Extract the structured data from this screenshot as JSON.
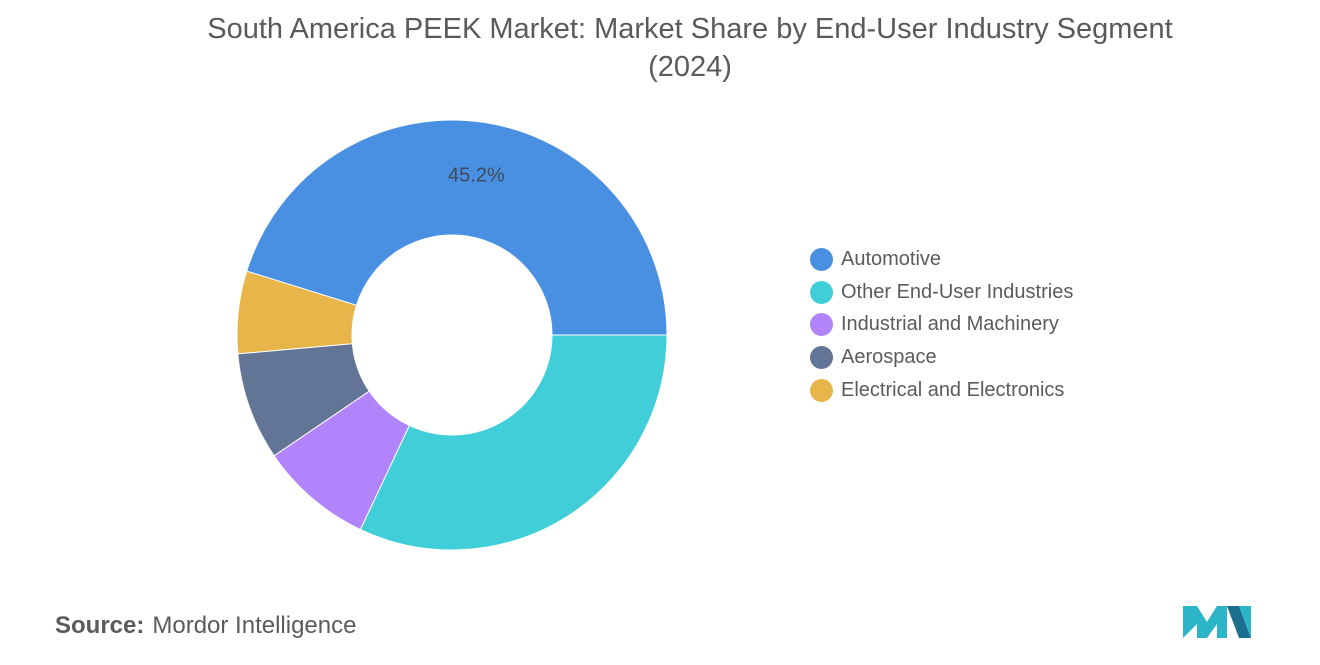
{
  "title_lines": [
    "South America PEEK Market: Market Share by End-User Industry Segment",
    "(2024)"
  ],
  "chart_data": {
    "type": "pie",
    "variant": "donut",
    "title": "South America PEEK Market: Market Share by End-User Industry Segment (2024)",
    "unit": "%",
    "legend_position": "right",
    "slices": [
      {
        "name": "Automotive",
        "value": 45.2,
        "color": "#4a90e2",
        "label": "45.2%"
      },
      {
        "name": "Electrical and Electronics",
        "value": 6.2,
        "color": "#e8b54a",
        "label": ""
      },
      {
        "name": "Aerospace",
        "value": 8.1,
        "color": "#637596",
        "label": ""
      },
      {
        "name": "Industrial and Machinery",
        "value": 8.5,
        "color": "#b184fb",
        "label": ""
      },
      {
        "name": "Other End-User Industries",
        "value": 32.0,
        "color": "#40cfd8",
        "label": ""
      }
    ],
    "legend": [
      {
        "name": "Automotive",
        "color": "#4a90e2"
      },
      {
        "name": "Other End-User Industries",
        "color": "#40cfd8"
      },
      {
        "name": "Industrial and Machinery",
        "color": "#b184fb"
      },
      {
        "name": "Aerospace",
        "color": "#637596"
      },
      {
        "name": "Electrical and Electronics",
        "color": "#e8b54a"
      }
    ]
  },
  "source": {
    "label": "Source:",
    "value": "Mordor Intelligence"
  },
  "logo": {
    "icon": "mordor-intelligence-logo-icon",
    "colors": [
      "#2bb5c6",
      "#1d6f8f"
    ]
  }
}
